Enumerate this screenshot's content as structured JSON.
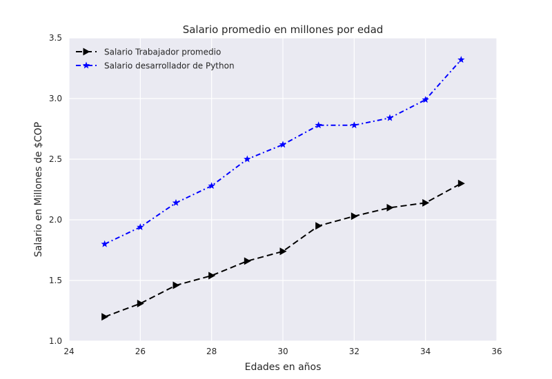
{
  "chart_data": {
    "type": "line",
    "title": "Salario promedio en millones por edad",
    "xlabel": "Edades en años",
    "ylabel": "Salario en Millones de $COP",
    "xlim": [
      24,
      36
    ],
    "ylim": [
      1.0,
      3.5
    ],
    "xticks": [
      24,
      26,
      28,
      30,
      32,
      34,
      36
    ],
    "yticks": [
      1.0,
      1.5,
      2.0,
      2.5,
      3.0,
      3.5
    ],
    "xtick_labels": [
      "24",
      "26",
      "28",
      "30",
      "32",
      "34",
      "36"
    ],
    "ytick_labels": [
      "1.0",
      "1.5",
      "2.0",
      "2.5",
      "3.0",
      "3.5"
    ],
    "grid": true,
    "legend_position": "top-left",
    "background_color": "#eaeaf2",
    "grid_color": "#ffffff",
    "x": [
      25,
      26,
      27,
      28,
      29,
      30,
      31,
      32,
      33,
      34,
      35
    ],
    "series": [
      {
        "name": "Salario Trabajador promedio",
        "values": [
          1.2,
          1.31,
          1.46,
          1.54,
          1.66,
          1.74,
          1.95,
          2.03,
          2.1,
          2.14,
          2.3
        ],
        "color": "#000000",
        "line_style": "dashed",
        "marker": "triangle-right"
      },
      {
        "name": "Salario desarrollador de Python",
        "values": [
          1.8,
          1.94,
          2.14,
          2.28,
          2.5,
          2.62,
          2.78,
          2.78,
          2.84,
          2.99,
          3.32
        ],
        "color": "#0000ff",
        "line_style": "dashdot",
        "marker": "star"
      }
    ]
  }
}
